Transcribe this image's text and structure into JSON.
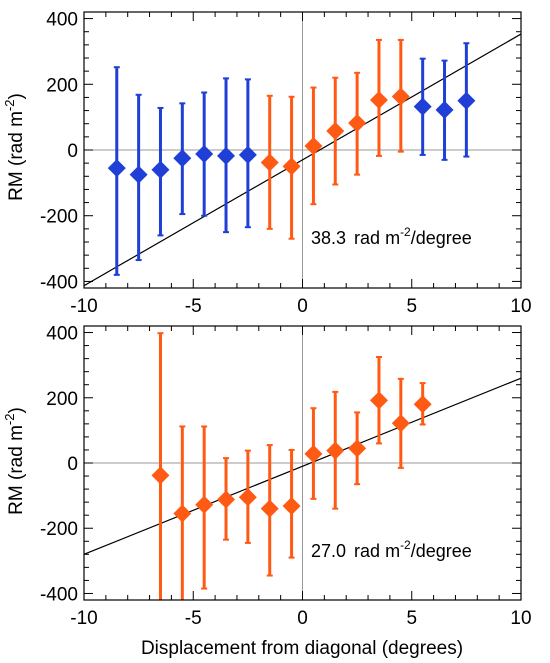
{
  "chart_data": [
    {
      "type": "scatter",
      "xlabel": "",
      "ylabel": "RM (rad m",
      "ylabel_sup": "-2",
      "ylabel_end": ")",
      "xlim": [
        -10,
        10
      ],
      "ylim": [
        -420,
        420
      ],
      "xticks": [
        -10,
        -5,
        0,
        5,
        10
      ],
      "yticks": [
        -400,
        -200,
        0,
        200,
        400
      ],
      "xtick_labels": [
        "-10",
        "-5",
        "0",
        "5",
        "10"
      ],
      "ytick_labels": [
        "-400",
        "-200",
        "0",
        "200",
        "400"
      ],
      "fit_line": {
        "slope": 38.3,
        "intercept": -30
      },
      "annotation": {
        "value": "38.3",
        "unit_a": "rad m",
        "unit_sup": "-2",
        "unit_b": "/degree"
      },
      "colors": {
        "blue": "#1f3fd6",
        "orange": "#ff5a14"
      },
      "points": [
        {
          "x": -8.5,
          "y": -55,
          "lo": -380,
          "hi": 252,
          "color": "blue"
        },
        {
          "x": -7.5,
          "y": -75,
          "lo": -335,
          "hi": 168,
          "color": "blue"
        },
        {
          "x": -6.5,
          "y": -60,
          "lo": -260,
          "hi": 128,
          "color": "blue"
        },
        {
          "x": -5.5,
          "y": -25,
          "lo": -195,
          "hi": 142,
          "color": "blue"
        },
        {
          "x": -4.5,
          "y": -12,
          "lo": -200,
          "hi": 175,
          "color": "blue"
        },
        {
          "x": -3.5,
          "y": -18,
          "lo": -250,
          "hi": 218,
          "color": "blue"
        },
        {
          "x": -2.5,
          "y": -15,
          "lo": -235,
          "hi": 215,
          "color": "blue"
        },
        {
          "x": -1.5,
          "y": -38,
          "lo": -240,
          "hi": 165,
          "color": "orange"
        },
        {
          "x": -0.5,
          "y": -50,
          "lo": -270,
          "hi": 162,
          "color": "orange"
        },
        {
          "x": 0.5,
          "y": 12,
          "lo": -165,
          "hi": 190,
          "color": "orange"
        },
        {
          "x": 1.5,
          "y": 58,
          "lo": -105,
          "hi": 220,
          "color": "orange"
        },
        {
          "x": 2.5,
          "y": 82,
          "lo": -75,
          "hi": 235,
          "color": "orange"
        },
        {
          "x": 3.5,
          "y": 152,
          "lo": -18,
          "hi": 335,
          "color": "orange"
        },
        {
          "x": 4.5,
          "y": 163,
          "lo": -5,
          "hi": 335,
          "color": "orange"
        },
        {
          "x": 5.5,
          "y": 132,
          "lo": -15,
          "hi": 278,
          "color": "blue"
        },
        {
          "x": 6.5,
          "y": 122,
          "lo": -30,
          "hi": 272,
          "color": "blue"
        },
        {
          "x": 7.5,
          "y": 150,
          "lo": -20,
          "hi": 325,
          "color": "blue"
        }
      ]
    },
    {
      "type": "scatter",
      "xlabel": "Displacement from diagonal (degrees)",
      "ylabel": "RM (rad m",
      "ylabel_sup": "-2",
      "ylabel_end": ")",
      "xlim": [
        -10,
        10
      ],
      "ylim": [
        -420,
        420
      ],
      "xticks": [
        -10,
        -5,
        0,
        5,
        10
      ],
      "yticks": [
        -400,
        -200,
        0,
        200,
        400
      ],
      "xtick_labels": [
        "-10",
        "-5",
        "0",
        "5",
        "10"
      ],
      "ytick_labels": [
        "-400",
        "-200",
        "0",
        "200",
        "400"
      ],
      "fit_line": {
        "slope": 27.0,
        "intercept": -10
      },
      "annotation": {
        "value": "27.0",
        "unit_a": "rad m",
        "unit_sup": "-2",
        "unit_b": "/degree"
      },
      "colors": {
        "blue": "#1f3fd6",
        "orange": "#ff5a14"
      },
      "points": [
        {
          "x": -6.5,
          "y": -38,
          "lo": -430,
          "hi": 398,
          "color": "orange"
        },
        {
          "x": -5.5,
          "y": -155,
          "lo": -430,
          "hi": 112,
          "color": "orange"
        },
        {
          "x": -4.5,
          "y": -128,
          "lo": -385,
          "hi": 112,
          "color": "orange"
        },
        {
          "x": -3.5,
          "y": -112,
          "lo": -235,
          "hi": 15,
          "color": "orange"
        },
        {
          "x": -2.5,
          "y": -105,
          "lo": -245,
          "hi": 38,
          "color": "orange"
        },
        {
          "x": -1.5,
          "y": -140,
          "lo": -345,
          "hi": 55,
          "color": "orange"
        },
        {
          "x": -0.5,
          "y": -132,
          "lo": -290,
          "hi": 40,
          "color": "orange"
        },
        {
          "x": 0.5,
          "y": 28,
          "lo": -110,
          "hi": 168,
          "color": "orange"
        },
        {
          "x": 1.5,
          "y": 38,
          "lo": -140,
          "hi": 218,
          "color": "orange"
        },
        {
          "x": 2.5,
          "y": 45,
          "lo": -65,
          "hi": 155,
          "color": "orange"
        },
        {
          "x": 3.5,
          "y": 192,
          "lo": 60,
          "hi": 325,
          "color": "orange"
        },
        {
          "x": 4.5,
          "y": 122,
          "lo": -15,
          "hi": 258,
          "color": "orange"
        },
        {
          "x": 5.5,
          "y": 180,
          "lo": 118,
          "hi": 245,
          "color": "orange"
        }
      ]
    }
  ]
}
